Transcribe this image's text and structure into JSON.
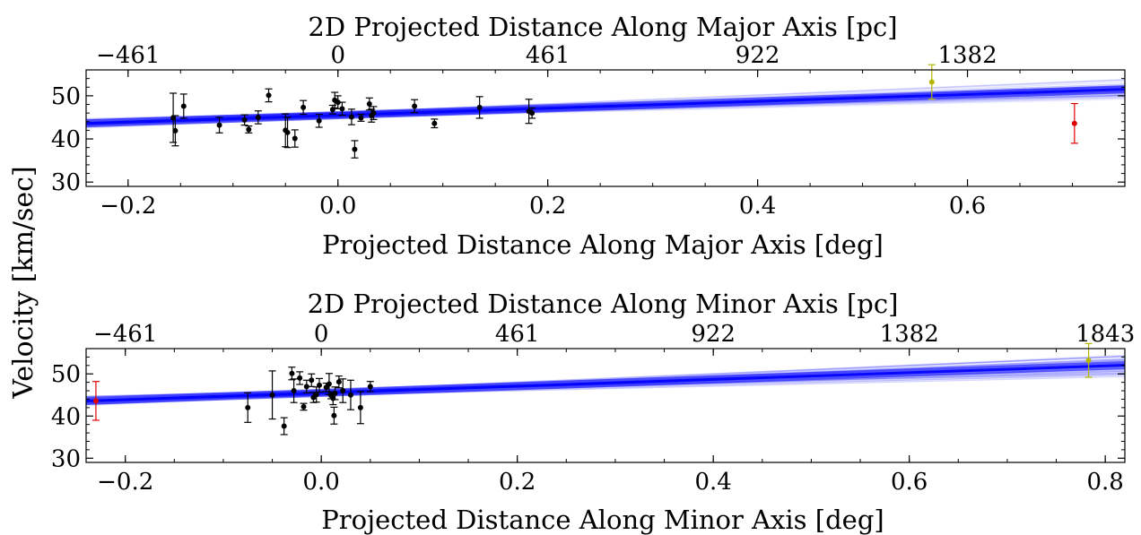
{
  "figure": {
    "shared_ylabel": "Velocity [km/sec]"
  },
  "chart_data": [
    {
      "type": "scatter",
      "title": "2D Projected Distance Along Major Axis [pc]",
      "xlabel": "Projected Distance Along Major Axis [deg]",
      "ylabel": "Velocity [km/sec]",
      "xlim": [
        -0.24,
        0.75
      ],
      "ylim": [
        29,
        56
      ],
      "xticks": [
        -0.2,
        0.0,
        0.2,
        0.4,
        0.6
      ],
      "xtick_labels": [
        "−0.2",
        "0.0",
        "0.2",
        "0.4",
        "0.6"
      ],
      "yticks": [
        30,
        40,
        50
      ],
      "ytick_labels": [
        "30",
        "40",
        "50"
      ],
      "top_axis": {
        "ticks_deg": [
          -0.2,
          0.0,
          0.2,
          0.4,
          0.6
        ],
        "tick_labels": [
          "−461",
          "0",
          "461",
          "922",
          "1382"
        ]
      },
      "fit": {
        "intercept": 45.5,
        "slope": 8.0,
        "spread": 2.2,
        "color": "#0000ff"
      },
      "members": {
        "color": "#000000",
        "x": [
          -0.157,
          -0.155,
          -0.147,
          -0.113,
          -0.089,
          -0.085,
          -0.076,
          -0.066,
          -0.05,
          -0.048,
          -0.041,
          -0.033,
          -0.018,
          -0.005,
          -0.003,
          0.0,
          0.004,
          0.013,
          0.016,
          0.022,
          0.03,
          0.032,
          0.034,
          0.073,
          0.092,
          0.135,
          0.182,
          0.185
        ],
        "y": [
          44.9,
          41.9,
          47.6,
          43.2,
          44.4,
          42.2,
          45.0,
          50.1,
          42.0,
          41.5,
          40.1,
          47.3,
          44.2,
          46.8,
          49.0,
          48.5,
          47.0,
          45.1,
          37.6,
          44.9,
          48.1,
          45.4,
          46.0,
          47.6,
          43.6,
          47.3,
          46.4,
          46.0
        ],
        "err": [
          5.7,
          3.5,
          2.8,
          1.8,
          1.2,
          0.8,
          1.5,
          1.5,
          3.8,
          3.5,
          2.0,
          1.6,
          1.5,
          1.0,
          1.8,
          1.5,
          1.5,
          1.8,
          2.0,
          0.8,
          1.4,
          1.5,
          1.5,
          1.5,
          1.0,
          2.5,
          2.8,
          1.2
        ]
      },
      "outliers": [
        {
          "x": 0.566,
          "y": 53.2,
          "err": 4.0,
          "color": "#b5b500"
        },
        {
          "x": 0.702,
          "y": 43.6,
          "err": 4.6,
          "color": "#e00000"
        }
      ]
    },
    {
      "type": "scatter",
      "title": "2D Projected Distance Along Minor Axis [pc]",
      "xlabel": "Projected Distance Along Minor Axis [deg]",
      "ylabel": "Velocity [km/sec]",
      "xlim": [
        -0.24,
        0.82
      ],
      "ylim": [
        29,
        56
      ],
      "xticks": [
        -0.2,
        0.0,
        0.2,
        0.4,
        0.6,
        0.8
      ],
      "xtick_labels": [
        "−0.2",
        "0.0",
        "0.2",
        "0.4",
        "0.6",
        "0.8"
      ],
      "yticks": [
        30,
        40,
        50
      ],
      "yticks_labels_note": "",
      "ytick_labels": [
        "30",
        "40",
        "50"
      ],
      "top_axis": {
        "ticks_deg": [
          -0.2,
          0.0,
          0.2,
          0.4,
          0.6,
          0.8
        ],
        "tick_labels": [
          "−461",
          "0",
          "461",
          "922",
          "1382",
          "1843"
        ]
      },
      "fit": {
        "intercept": 45.5,
        "slope": 8.0,
        "spread": 2.6,
        "color": "#0000ff"
      },
      "members": {
        "color": "#000000",
        "x": [
          -0.075,
          -0.05,
          -0.038,
          -0.03,
          -0.028,
          -0.022,
          -0.015,
          -0.018,
          -0.01,
          -0.008,
          -0.005,
          -0.002,
          0.005,
          0.008,
          0.01,
          0.012,
          0.013,
          0.014,
          0.018,
          0.022,
          0.03,
          0.04,
          0.05
        ],
        "y": [
          42.0,
          45.0,
          37.6,
          50.1,
          46.0,
          49.0,
          47.0,
          42.2,
          48.5,
          44.4,
          45.1,
          47.3,
          46.8,
          47.6,
          44.9,
          44.2,
          40.1,
          45.4,
          48.1,
          46.0,
          45.0,
          42.0,
          47.0
        ],
        "err": [
          3.5,
          5.7,
          2.0,
          1.5,
          2.8,
          1.5,
          1.5,
          0.8,
          1.5,
          1.2,
          1.8,
          1.6,
          1.0,
          2.5,
          0.8,
          1.5,
          2.0,
          1.5,
          1.4,
          2.8,
          3.5,
          3.8,
          1.2
        ]
      },
      "outliers": [
        {
          "x": -0.23,
          "y": 43.6,
          "err": 4.6,
          "color": "#e00000"
        },
        {
          "x": 0.783,
          "y": 53.2,
          "err": 4.0,
          "color": "#b5b500"
        }
      ]
    }
  ]
}
